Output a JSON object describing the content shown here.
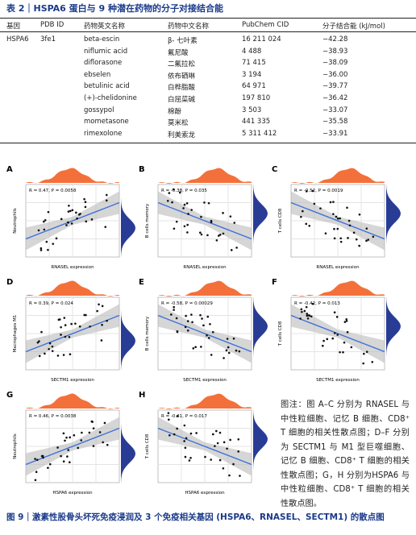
{
  "table": {
    "title": "表 2｜HSPA6 蛋白与 9 种潜在药物的分子对接结合能",
    "headers": [
      "基因",
      "PDB ID",
      "药物英文名称",
      "药物中文名称",
      "PubChem CID",
      "分子结合能 (kJ/mol)"
    ],
    "rows": [
      [
        "HSPA6",
        "3fe1",
        "beta-escin",
        "β- 七叶素",
        "16 211 024",
        "−42.28"
      ],
      [
        "",
        "",
        "niflumic acid",
        "氟尼酸",
        "4 488",
        "−38.93"
      ],
      [
        "",
        "",
        "diflorasone",
        "二氟拉松",
        "71 415",
        "−38.09"
      ],
      [
        "",
        "",
        "ebselen",
        "依布硒啉",
        "3 194",
        "−36.00"
      ],
      [
        "",
        "",
        "betulinic acid",
        "白桦脂酸",
        "64 971",
        "−39.77"
      ],
      [
        "",
        "",
        "(+)-chelidonine",
        "白屈菜碱",
        "197 810",
        "−36.42"
      ],
      [
        "",
        "",
        "gossypol",
        "棉酚",
        "3 503",
        "−33.07"
      ],
      [
        "",
        "",
        "mometasone",
        "莫米松",
        "441 335",
        "−35.58"
      ],
      [
        "",
        "",
        "rimexolone",
        "利美索龙",
        "5 311 412",
        "−33.91"
      ]
    ]
  },
  "figure": {
    "panels": [
      {
        "label": "A",
        "stat": "R = 0.47, P = 0.0058",
        "xlabel": "RNASEL expression",
        "ylabel": "Neutrophils"
      },
      {
        "label": "B",
        "stat": "R = -0.38, P = 0.035",
        "xlabel": "RNASEL expression",
        "ylabel": "B cells memory"
      },
      {
        "label": "C",
        "stat": "R = -0.52, P = 0.0019",
        "xlabel": "RNASEL expression",
        "ylabel": "T cells CD8"
      },
      {
        "label": "D",
        "stat": "R = 0.39, P = 0.024",
        "xlabel": "SECTM1 expression",
        "ylabel": "Macrophages M1"
      },
      {
        "label": "E",
        "stat": "R = -0.58, P = 0.00029",
        "xlabel": "SECTM1 expression",
        "ylabel": "B cells memory"
      },
      {
        "label": "F",
        "stat": "R = -0.42, P = 0.013",
        "xlabel": "SECTM1 expression",
        "ylabel": "T cells CD8"
      },
      {
        "label": "G",
        "stat": "R = 0.46, P = 0.0038",
        "xlabel": "HSPA6 expression",
        "ylabel": "Neutrophils"
      },
      {
        "label": "H",
        "stat": "R = -0.41, P = 0.017",
        "xlabel": "HSPA6 expression",
        "ylabel": "T cells CD8"
      }
    ],
    "note": "图注：图 A–C 分别为 RNASEL 与中性粒细胞、记忆 B 细胞、CD8⁺ T 细胞的相关性散点图；D–F 分别为 SECTM1 与 M1 型巨噬细胞、记忆 B 细胞、CD8⁺ T 细胞的相关性散点图；G，H 分别为HSPA6 与中性粒细胞、CD8⁺ T 细胞的相关性散点图。",
    "caption": "图 9｜激素性股骨头坏死免疫浸润及 3 个免疫相关基因 (HSPA6、RNASEL、SECTM1) 的散点图"
  }
}
